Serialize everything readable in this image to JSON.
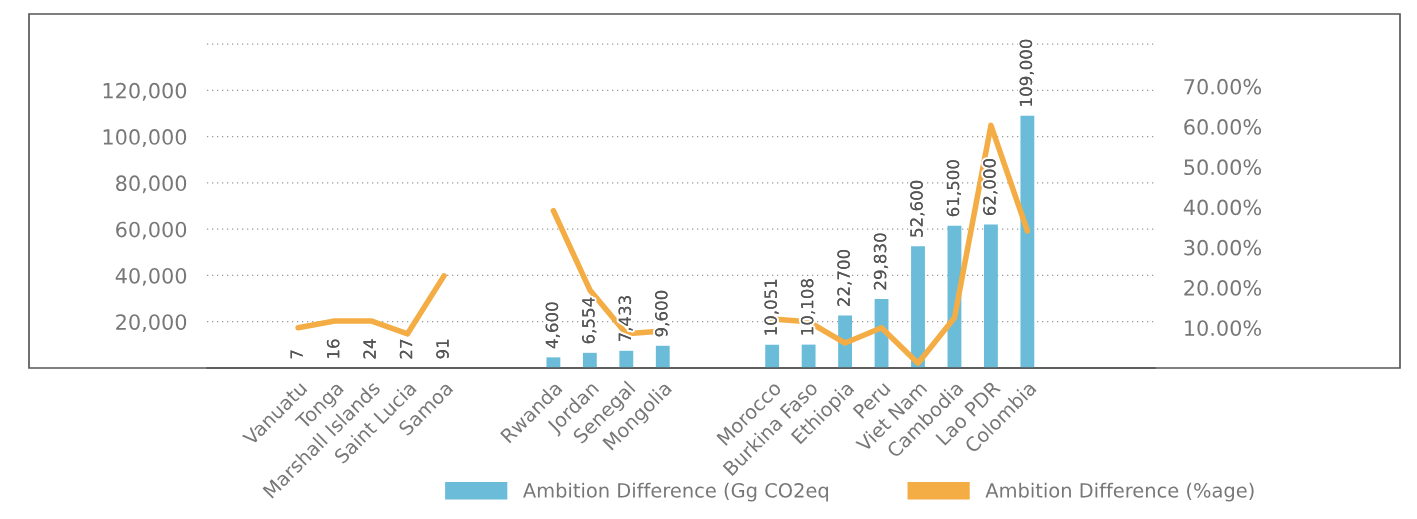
{
  "chart_data": {
    "type": "bar",
    "categories": [
      null,
      null,
      "Vanuatu",
      "Tonga",
      "Marshall Islands",
      "Saint Lucia",
      "Samoa",
      null,
      null,
      "Rwanda",
      "Jordan",
      "Senegal",
      "Mongolia",
      null,
      null,
      "Morocco",
      "Burkina Faso",
      "Ethiopia",
      "Peru",
      "Viet Nam",
      "Cambodia",
      "Lao PDR",
      "Colombia",
      null,
      null,
      null
    ],
    "series": [
      {
        "name": "Ambition Difference (Gg CO2eq",
        "color": "#6bbcd8",
        "values": [
          null,
          null,
          7,
          16,
          24,
          27,
          91,
          null,
          null,
          4600,
          6554,
          7433,
          9600,
          null,
          null,
          10051,
          10108,
          22700,
          29830,
          52600,
          61500,
          62000,
          109000,
          null,
          null,
          null
        ],
        "value_labels": [
          null,
          null,
          "7",
          "16",
          "24",
          "27",
          "91",
          null,
          null,
          "4,600",
          "6,554",
          "7,433",
          "9,600",
          null,
          null,
          "10,051",
          "10,108",
          "22,700",
          "29,830",
          "52,600",
          "61,500",
          "62,000",
          "109,000",
          null,
          null,
          null
        ]
      },
      {
        "name": "Ambition Difference (%age)",
        "type": "line",
        "axis": "y2",
        "color": "#f4ad45",
        "values": [
          null,
          null,
          10.0,
          11.7,
          11.7,
          8.5,
          22.9,
          null,
          null,
          39.1,
          19.4,
          8.5,
          9.2,
          null,
          null,
          12.2,
          11.5,
          6.2,
          10.0,
          1.2,
          12.5,
          60.3,
          34.1,
          null,
          null,
          null
        ]
      }
    ],
    "ylim": [
      0,
      153000
    ],
    "yticks": [
      {
        "value": 20000,
        "label": "20,000"
      },
      {
        "value": 40000,
        "label": "40,000"
      },
      {
        "value": 60000,
        "label": "60,000"
      },
      {
        "value": 80000,
        "label": "80,000"
      },
      {
        "value": 100000,
        "label": "100,000"
      },
      {
        "value": 120000,
        "label": "120,000"
      },
      {
        "value": 140000,
        "label": null
      }
    ],
    "y2lim": [
      0,
      88
    ],
    "y2ticks": [
      {
        "value": 10,
        "label": "10.00%"
      },
      {
        "value": 20,
        "label": "20.00%"
      },
      {
        "value": 30,
        "label": "30.00%"
      },
      {
        "value": 40,
        "label": "40.00%"
      },
      {
        "value": 50,
        "label": "50.00%"
      },
      {
        "value": 60,
        "label": "60.00%"
      },
      {
        "value": 70,
        "label": "70.00%"
      }
    ],
    "grid": "y",
    "legend": "bottom",
    "line_style": "solid",
    "marker": "none"
  }
}
